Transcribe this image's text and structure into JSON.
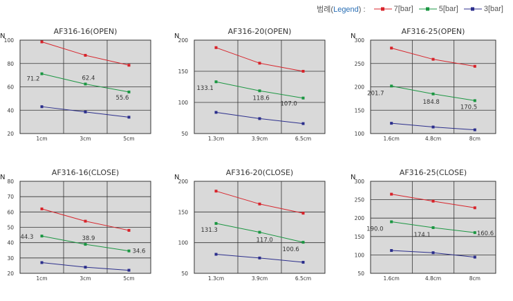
{
  "legend": {
    "title_prefix": "범례(",
    "title_accent": "Legend",
    "title_suffix": ") :",
    "items": [
      {
        "label": "7[bar]",
        "color": "#d8232a"
      },
      {
        "label": "5[bar]",
        "color": "#1a9641"
      },
      {
        "label": "3[bar]",
        "color": "#2b2e8c"
      }
    ]
  },
  "chart_data": [
    {
      "type": "line",
      "title": "AF316-16(OPEN)",
      "ylabel": "N",
      "categories": [
        "1cm",
        "3cm",
        "5cm"
      ],
      "ylim": [
        20,
        100
      ],
      "yticks": [
        20,
        40,
        60,
        80,
        100
      ],
      "grid": true,
      "series": [
        {
          "name": "7[bar]",
          "values": [
            98.5,
            87,
            78.5
          ]
        },
        {
          "name": "5[bar]",
          "values": [
            71.2,
            62.4,
            55.6
          ],
          "labels": [
            "71.2",
            "62.4",
            "55.6"
          ]
        },
        {
          "name": "3[bar]",
          "values": [
            43,
            38.5,
            34
          ]
        }
      ]
    },
    {
      "type": "line",
      "title": "AF316-20(OPEN)",
      "ylabel": "N",
      "categories": [
        "1.3cm",
        "3.9cm",
        "6.5cm"
      ],
      "ylim": [
        50,
        200
      ],
      "yticks": [
        50,
        100,
        150,
        200
      ],
      "grid": true,
      "series": [
        {
          "name": "7[bar]",
          "values": [
            188,
            163,
            150
          ]
        },
        {
          "name": "5[bar]",
          "values": [
            133.1,
            118.6,
            107.0
          ],
          "labels": [
            "133.1",
            "118.6",
            "107.0"
          ]
        },
        {
          "name": "3[bar]",
          "values": [
            84,
            74,
            66
          ]
        }
      ]
    },
    {
      "type": "line",
      "title": "AF316-25(OPEN)",
      "ylabel": "N",
      "categories": [
        "1.6cm",
        "4.8cm",
        "8cm"
      ],
      "ylim": [
        100,
        300
      ],
      "yticks": [
        100,
        150,
        200,
        250,
        300
      ],
      "grid": true,
      "series": [
        {
          "name": "7[bar]",
          "values": [
            283,
            259,
            244
          ]
        },
        {
          "name": "5[bar]",
          "values": [
            201.7,
            184.8,
            170.5
          ],
          "labels": [
            "201.7",
            "184.8",
            "170.5"
          ]
        },
        {
          "name": "3[bar]",
          "values": [
            122,
            114,
            108
          ]
        }
      ]
    },
    {
      "type": "line",
      "title": "AF316-16(CLOSE)",
      "ylabel": "N",
      "categories": [
        "1cm",
        "3cm",
        "5cm"
      ],
      "ylim": [
        20,
        80
      ],
      "yticks": [
        20,
        30,
        40,
        50,
        60,
        70,
        80
      ],
      "grid": true,
      "series": [
        {
          "name": "7[bar]",
          "values": [
            62,
            54,
            48
          ]
        },
        {
          "name": "5[bar]",
          "values": [
            44.3,
            38.9,
            34.6
          ],
          "labels": [
            "44.3",
            "38.9",
            "34.6"
          ]
        },
        {
          "name": "3[bar]",
          "values": [
            27,
            24,
            22
          ]
        }
      ]
    },
    {
      "type": "line",
      "title": "AF316-20(CLOSE)",
      "ylabel": "N",
      "categories": [
        "1.3cm",
        "3.9cm",
        "6.5cm"
      ],
      "ylim": [
        50,
        200
      ],
      "yticks": [
        50,
        100,
        150,
        200
      ],
      "grid": true,
      "series": [
        {
          "name": "7[bar]",
          "values": [
            184,
            163,
            148
          ]
        },
        {
          "name": "5[bar]",
          "values": [
            131.3,
            117.0,
            100.6
          ],
          "labels": [
            "131.3",
            "117.0",
            "100.6"
          ]
        },
        {
          "name": "3[bar]",
          "values": [
            81,
            75,
            68
          ]
        }
      ]
    },
    {
      "type": "line",
      "title": "AF316-25(CLOSE)",
      "ylabel": "N",
      "categories": [
        "1.6cm",
        "4.8cm",
        "8cm"
      ],
      "ylim": [
        50,
        300
      ],
      "yticks": [
        50,
        100,
        150,
        200,
        250,
        300
      ],
      "grid": true,
      "series": [
        {
          "name": "7[bar]",
          "values": [
            265,
            246,
            228
          ]
        },
        {
          "name": "5[bar]",
          "values": [
            190.0,
            174.1,
            160.6
          ],
          "labels": [
            "190.0",
            "174.1",
            "160.6"
          ]
        },
        {
          "name": "3[bar]",
          "values": [
            112,
            106,
            94
          ]
        }
      ]
    }
  ]
}
